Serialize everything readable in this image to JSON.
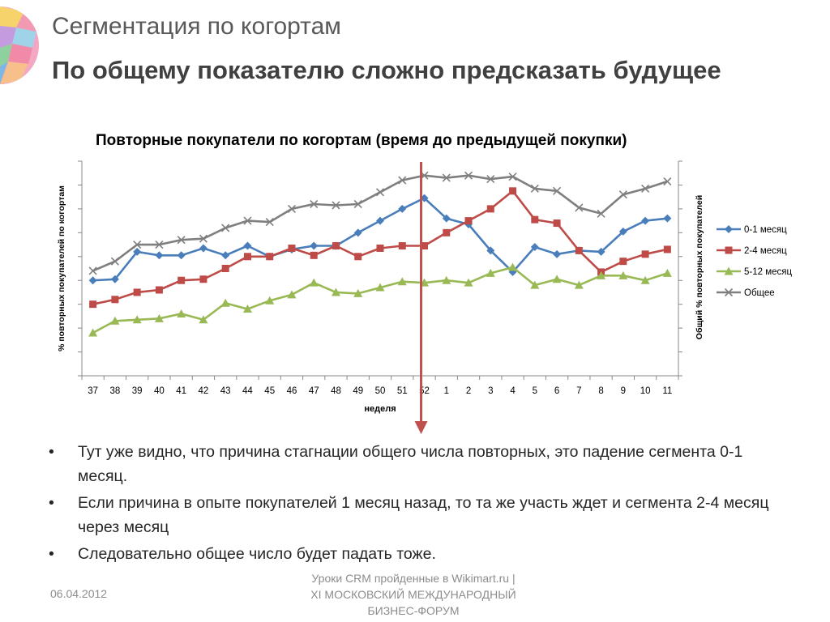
{
  "slide": {
    "title": "Сегментация по когортам",
    "subtitle": "По общему показателю сложно предсказать будущее"
  },
  "chart_data": {
    "type": "line",
    "title": "Повторные покупатели по когортам (время до предыдущей покупки)",
    "xlabel": "неделя",
    "ylabel": "% повторных покупателей по когортам",
    "y2label": "Общий %  повторных покупателей",
    "categories": [
      "37",
      "38",
      "39",
      "40",
      "41",
      "42",
      "43",
      "44",
      "45",
      "46",
      "47",
      "48",
      "49",
      "50",
      "51",
      "52",
      "1",
      "2",
      "3",
      "4",
      "5",
      "6",
      "7",
      "8",
      "9",
      "10",
      "11"
    ],
    "ylim": [
      0,
      9
    ],
    "y_ticks_labeled": false,
    "grid": false,
    "legend_position": "right",
    "marker_at_category": "52",
    "series": [
      {
        "name": "0-1 месяц",
        "axis": "left",
        "color": "#4a7ebb",
        "marker": "diamond",
        "values": [
          4.0,
          4.05,
          5.2,
          5.05,
          5.05,
          5.35,
          5.05,
          5.45,
          5.0,
          5.3,
          5.45,
          5.45,
          6.0,
          6.5,
          7.0,
          7.45,
          6.6,
          6.35,
          5.25,
          4.35,
          5.4,
          5.1,
          5.25,
          5.2,
          6.05,
          6.5,
          6.6
        ]
      },
      {
        "name": "2-4 месяц",
        "axis": "left",
        "color": "#be4b48",
        "marker": "square",
        "values": [
          3.0,
          3.2,
          3.5,
          3.6,
          4.0,
          4.05,
          4.5,
          5.0,
          5.0,
          5.35,
          5.05,
          5.45,
          5.0,
          5.35,
          5.45,
          5.45,
          6.0,
          6.5,
          7.0,
          7.75,
          6.55,
          6.4,
          5.25,
          4.35,
          4.8,
          5.1,
          5.3
        ]
      },
      {
        "name": "5-12 месяц",
        "axis": "left",
        "color": "#98b954",
        "marker": "triangle",
        "values": [
          1.8,
          2.3,
          2.35,
          2.4,
          2.6,
          2.35,
          3.05,
          2.8,
          3.15,
          3.4,
          3.9,
          3.5,
          3.45,
          3.7,
          3.95,
          3.9,
          4.0,
          3.9,
          4.3,
          4.55,
          3.8,
          4.05,
          3.8,
          4.2,
          4.2,
          4.0,
          4.3
        ]
      },
      {
        "name": "Общее",
        "axis": "right",
        "color": "#7f7f7f",
        "marker": "x",
        "values": [
          4.4,
          4.8,
          5.5,
          5.5,
          5.7,
          5.75,
          6.2,
          6.5,
          6.45,
          7.0,
          7.2,
          7.15,
          7.2,
          7.7,
          8.2,
          8.4,
          8.3,
          8.4,
          8.25,
          8.35,
          7.85,
          7.75,
          7.05,
          6.8,
          7.6,
          7.85,
          8.15
        ]
      }
    ]
  },
  "bullets": [
    "Тут уже видно, что причина стагнации общего числа повторных, это падение сегмента 0-1 месяц.",
    "Если причина в опыте покупателей 1 месяц назад, то та же участь ждет и сегмента 2-4 месяц через месяц",
    "Следовательно общее число будет падать тоже."
  ],
  "footer": {
    "date": "06.04.2012",
    "event_line1": "Уроки CRM пройденные в Wikimart.ru |",
    "event_line2": "XI МОСКОВСКИЙ МЕЖДУНАРОДНЫЙ",
    "event_line3": "БИЗНЕС-ФОРУМ"
  }
}
